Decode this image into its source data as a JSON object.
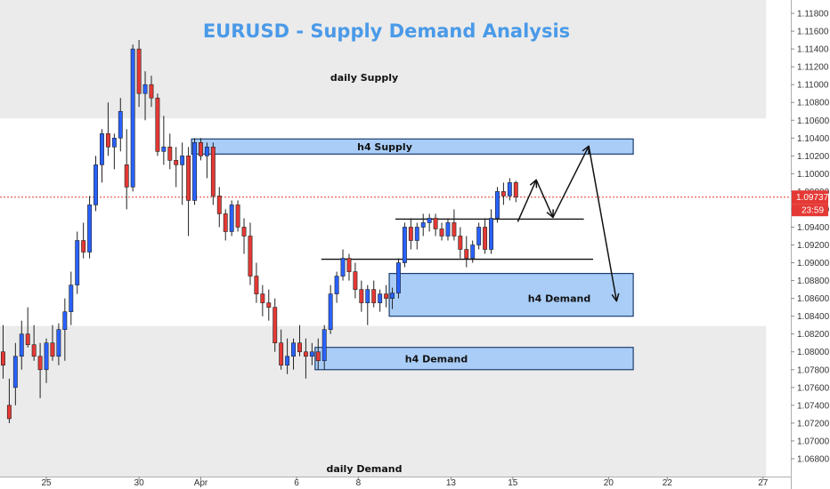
{
  "chart_data": {
    "type": "candlestick",
    "title": "EURUSD - Supply Demand Analysis",
    "symbol": "EURUSD",
    "colors": {
      "up": "#2962ff",
      "down": "#e53935",
      "zone_fill": "#a9cdf7",
      "zone_border": "#1e3e6f",
      "daily_band": "#ebebeb",
      "title": "#4a9ae8",
      "price_line": "#e53935",
      "badge": "#e53935"
    },
    "y_axis": {
      "position": "right",
      "range": [
        1.066,
        1.1195
      ],
      "ticks": [
        "1.11800",
        "1.11600",
        "1.11400",
        "1.11200",
        "1.11000",
        "1.10800",
        "1.10600",
        "1.10400",
        "1.10200",
        "1.10000",
        "1.09800",
        "1.09600",
        "1.09400",
        "1.09200",
        "1.09000",
        "1.08800",
        "1.08600",
        "1.08400",
        "1.08200",
        "1.08000",
        "1.07800",
        "1.07600",
        "1.07400",
        "1.07200",
        "1.07000",
        "1.06800"
      ]
    },
    "x_axis": {
      "range": [
        0,
        128
      ],
      "ticks": [
        {
          "label": "25",
          "x": 7.5
        },
        {
          "label": "30",
          "x": 22.5
        },
        {
          "label": "Apr",
          "x": 32.5
        },
        {
          "label": "6",
          "x": 48
        },
        {
          "label": "8",
          "x": 58
        },
        {
          "label": "13",
          "x": 73
        },
        {
          "label": "15",
          "x": 83
        },
        {
          "label": "20",
          "x": 98.5
        },
        {
          "label": "22",
          "x": 108
        },
        {
          "label": "27",
          "x": 123.5
        }
      ]
    },
    "current_price": {
      "label": "1.09737",
      "value": 1.09737,
      "timer": "23:59"
    },
    "zones": [
      {
        "name": "daily Supply",
        "type": "daily",
        "from": 1.1062,
        "to": 1.1195,
        "x0": 0,
        "x1": 124
      },
      {
        "name": "daily Demand",
        "type": "daily",
        "from": 1.066,
        "to": 1.0829,
        "x0": 0,
        "x1": 124
      },
      {
        "name": "h4 Supply",
        "type": "h4",
        "from": 1.1022,
        "to": 1.1039,
        "x0": 31,
        "x1": 102.5
      },
      {
        "name": "h4 Demand",
        "type": "h4",
        "from": 1.084,
        "to": 1.0888,
        "x0": 63,
        "x1": 102.5
      },
      {
        "name": "h4 Demand",
        "type": "h4",
        "from": 1.078,
        "to": 1.0805,
        "x0": 51,
        "x1": 102.5
      }
    ],
    "levels": [
      {
        "value": 1.0949,
        "x0": 64,
        "x1": 94.5
      },
      {
        "value": 1.0904,
        "x0": 52,
        "x1": 96
      }
    ],
    "projection": [
      [
        83.8,
        1.0946
      ],
      [
        86.8,
        1.0993
      ],
      [
        89.5,
        1.0951
      ],
      [
        95.3,
        1.1031
      ],
      [
        99.8,
        1.0857
      ]
    ],
    "series": [
      {
        "x": 0,
        "open": 1.08,
        "high": 1.083,
        "low": 1.077,
        "close": 1.0785
      },
      {
        "x": 1,
        "open": 1.074,
        "high": 1.077,
        "low": 1.072,
        "close": 1.0725
      },
      {
        "x": 2,
        "open": 1.076,
        "high": 1.081,
        "low": 1.074,
        "close": 1.0795
      },
      {
        "x": 3,
        "open": 1.0795,
        "high": 1.0835,
        "low": 1.078,
        "close": 1.082
      },
      {
        "x": 4,
        "open": 1.082,
        "high": 1.085,
        "low": 1.0805,
        "close": 1.0808
      },
      {
        "x": 5,
        "open": 1.0808,
        "high": 1.083,
        "low": 1.079,
        "close": 1.0795
      },
      {
        "x": 6,
        "open": 1.0795,
        "high": 1.081,
        "low": 1.0748,
        "close": 1.078
      },
      {
        "x": 7,
        "open": 1.078,
        "high": 1.0815,
        "low": 1.0765,
        "close": 1.081
      },
      {
        "x": 8,
        "open": 1.081,
        "high": 1.083,
        "low": 1.079,
        "close": 1.0795
      },
      {
        "x": 9,
        "open": 1.0795,
        "high": 1.0832,
        "low": 1.0785,
        "close": 1.0825
      },
      {
        "x": 10,
        "open": 1.0825,
        "high": 1.086,
        "low": 1.079,
        "close": 1.0845
      },
      {
        "x": 11,
        "open": 1.0845,
        "high": 1.089,
        "low": 1.083,
        "close": 1.0875
      },
      {
        "x": 12,
        "open": 1.0875,
        "high": 1.0935,
        "low": 1.0865,
        "close": 1.0925
      },
      {
        "x": 13,
        "open": 1.0925,
        "high": 1.0945,
        "low": 1.0905,
        "close": 1.0912
      },
      {
        "x": 14,
        "open": 1.0912,
        "high": 1.0975,
        "low": 1.0905,
        "close": 1.0965
      },
      {
        "x": 15,
        "open": 1.0965,
        "high": 1.102,
        "low": 1.0958,
        "close": 1.101
      },
      {
        "x": 16,
        "open": 1.101,
        "high": 1.105,
        "low": 1.099,
        "close": 1.1045
      },
      {
        "x": 17,
        "open": 1.1045,
        "high": 1.108,
        "low": 1.102,
        "close": 1.103
      },
      {
        "x": 18,
        "open": 1.103,
        "high": 1.1045,
        "low": 1.1005,
        "close": 1.104
      },
      {
        "x": 19,
        "open": 1.104,
        "high": 1.1085,
        "low": 1.1025,
        "close": 1.107
      },
      {
        "x": 20,
        "open": 1.101,
        "high": 1.105,
        "low": 1.096,
        "close": 1.0985
      },
      {
        "x": 21,
        "open": 1.0985,
        "high": 1.1145,
        "low": 1.098,
        "close": 1.114
      },
      {
        "x": 22,
        "open": 1.114,
        "high": 1.115,
        "low": 1.1075,
        "close": 1.109
      },
      {
        "x": 23,
        "open": 1.109,
        "high": 1.1115,
        "low": 1.106,
        "close": 1.11
      },
      {
        "x": 24,
        "open": 1.11,
        "high": 1.111,
        "low": 1.1075,
        "close": 1.1085
      },
      {
        "x": 25,
        "open": 1.1085,
        "high": 1.109,
        "low": 1.102,
        "close": 1.1025
      },
      {
        "x": 26,
        "open": 1.1025,
        "high": 1.1065,
        "low": 1.101,
        "close": 1.103
      },
      {
        "x": 27,
        "open": 1.103,
        "high": 1.1045,
        "low": 1.1005,
        "close": 1.1015
      },
      {
        "x": 28,
        "open": 1.1015,
        "high": 1.103,
        "low": 1.0985,
        "close": 1.101
      },
      {
        "x": 29,
        "open": 1.101,
        "high": 1.1035,
        "low": 1.0965,
        "close": 1.102
      },
      {
        "x": 30,
        "open": 1.102,
        "high": 1.103,
        "low": 1.093,
        "close": 1.097
      },
      {
        "x": 31,
        "open": 1.097,
        "high": 1.104,
        "low": 1.0965,
        "close": 1.1035
      },
      {
        "x": 32,
        "open": 1.1035,
        "high": 1.104,
        "low": 1.1015,
        "close": 1.102
      },
      {
        "x": 33,
        "open": 1.102,
        "high": 1.1035,
        "low": 1.0995,
        "close": 1.103
      },
      {
        "x": 34,
        "open": 1.103,
        "high": 1.1035,
        "low": 1.0965,
        "close": 1.0975
      },
      {
        "x": 35,
        "open": 1.0975,
        "high": 1.0985,
        "low": 1.094,
        "close": 1.0955
      },
      {
        "x": 36,
        "open": 1.0955,
        "high": 1.096,
        "low": 1.0925,
        "close": 1.0935
      },
      {
        "x": 37,
        "open": 1.0935,
        "high": 1.097,
        "low": 1.093,
        "close": 1.0965
      },
      {
        "x": 38,
        "open": 1.0965,
        "high": 1.097,
        "low": 1.0935,
        "close": 1.094
      },
      {
        "x": 39,
        "open": 1.094,
        "high": 1.095,
        "low": 1.091,
        "close": 1.093
      },
      {
        "x": 40,
        "open": 1.093,
        "high": 1.0945,
        "low": 1.0875,
        "close": 1.0885
      },
      {
        "x": 41,
        "open": 1.0885,
        "high": 1.09,
        "low": 1.0855,
        "close": 1.0865
      },
      {
        "x": 42,
        "open": 1.0865,
        "high": 1.0875,
        "low": 1.084,
        "close": 1.0855
      },
      {
        "x": 43,
        "open": 1.0855,
        "high": 1.087,
        "low": 1.0835,
        "close": 1.085
      },
      {
        "x": 44,
        "open": 1.085,
        "high": 1.086,
        "low": 1.08,
        "close": 1.081
      },
      {
        "x": 45,
        "open": 1.081,
        "high": 1.0825,
        "low": 1.078,
        "close": 1.0785
      },
      {
        "x": 46,
        "open": 1.0785,
        "high": 1.0815,
        "low": 1.0775,
        "close": 1.0795
      },
      {
        "x": 47,
        "open": 1.0795,
        "high": 1.0815,
        "low": 1.078,
        "close": 1.081
      },
      {
        "x": 48,
        "open": 1.081,
        "high": 1.083,
        "low": 1.0795,
        "close": 1.08
      },
      {
        "x": 49,
        "open": 1.08,
        "high": 1.0815,
        "low": 1.077,
        "close": 1.0795
      },
      {
        "x": 50,
        "open": 1.0795,
        "high": 1.081,
        "low": 1.0785,
        "close": 1.08
      },
      {
        "x": 51,
        "open": 1.08,
        "high": 1.0815,
        "low": 1.078,
        "close": 1.079
      },
      {
        "x": 52,
        "open": 1.079,
        "high": 1.083,
        "low": 1.078,
        "close": 1.0825
      },
      {
        "x": 53,
        "open": 1.0825,
        "high": 1.0875,
        "low": 1.082,
        "close": 1.0865
      },
      {
        "x": 54,
        "open": 1.0865,
        "high": 1.089,
        "low": 1.0855,
        "close": 1.0885
      },
      {
        "x": 55,
        "open": 1.0885,
        "high": 1.0915,
        "low": 1.088,
        "close": 1.0905
      },
      {
        "x": 56,
        "open": 1.0905,
        "high": 1.091,
        "low": 1.088,
        "close": 1.089
      },
      {
        "x": 57,
        "open": 1.089,
        "high": 1.09,
        "low": 1.086,
        "close": 1.087
      },
      {
        "x": 58,
        "open": 1.087,
        "high": 1.088,
        "low": 1.0845,
        "close": 1.0855
      },
      {
        "x": 59,
        "open": 1.0855,
        "high": 1.0875,
        "low": 1.083,
        "close": 1.087
      },
      {
        "x": 60,
        "open": 1.087,
        "high": 1.088,
        "low": 1.085,
        "close": 1.0855
      },
      {
        "x": 61,
        "open": 1.0855,
        "high": 1.087,
        "low": 1.0845,
        "close": 1.0865
      },
      {
        "x": 62,
        "open": 1.0865,
        "high": 1.0875,
        "low": 1.085,
        "close": 1.086
      },
      {
        "x": 63,
        "open": 1.086,
        "high": 1.0872,
        "low": 1.0848,
        "close": 1.0866
      },
      {
        "x": 64,
        "open": 1.0866,
        "high": 1.0905,
        "low": 1.086,
        "close": 1.09
      },
      {
        "x": 65,
        "open": 1.09,
        "high": 1.0945,
        "low": 1.0895,
        "close": 1.094
      },
      {
        "x": 66,
        "open": 1.094,
        "high": 1.095,
        "low": 1.0915,
        "close": 1.0925
      },
      {
        "x": 67,
        "open": 1.0925,
        "high": 1.0945,
        "low": 1.0915,
        "close": 1.094
      },
      {
        "x": 68,
        "open": 1.094,
        "high": 1.0955,
        "low": 1.093,
        "close": 1.0945
      },
      {
        "x": 69,
        "open": 1.0945,
        "high": 1.0955,
        "low": 1.0935,
        "close": 1.095
      },
      {
        "x": 70,
        "open": 1.095,
        "high": 1.0955,
        "low": 1.093,
        "close": 1.0938
      },
      {
        "x": 71,
        "open": 1.0938,
        "high": 1.0945,
        "low": 1.0925,
        "close": 1.093
      },
      {
        "x": 72,
        "open": 1.093,
        "high": 1.095,
        "low": 1.0925,
        "close": 1.0945
      },
      {
        "x": 73,
        "open": 1.0945,
        "high": 1.096,
        "low": 1.0925,
        "close": 1.093
      },
      {
        "x": 74,
        "open": 1.093,
        "high": 1.094,
        "low": 1.0905,
        "close": 1.0915
      },
      {
        "x": 75,
        "open": 1.0915,
        "high": 1.093,
        "low": 1.0895,
        "close": 1.0905
      },
      {
        "x": 76,
        "open": 1.0905,
        "high": 1.0925,
        "low": 1.09,
        "close": 1.092
      },
      {
        "x": 77,
        "open": 1.092,
        "high": 1.0945,
        "low": 1.0915,
        "close": 1.094
      },
      {
        "x": 78,
        "open": 1.094,
        "high": 1.095,
        "low": 1.091,
        "close": 1.0915
      },
      {
        "x": 79,
        "open": 1.0915,
        "high": 1.096,
        "low": 1.091,
        "close": 1.095
      },
      {
        "x": 80,
        "open": 1.095,
        "high": 1.0985,
        "low": 1.0945,
        "close": 1.098
      },
      {
        "x": 81,
        "open": 1.098,
        "high": 1.099,
        "low": 1.0965,
        "close": 1.0975
      },
      {
        "x": 82,
        "open": 1.0975,
        "high": 1.0995,
        "low": 1.097,
        "close": 1.099
      },
      {
        "x": 83,
        "open": 1.099,
        "high": 1.0992,
        "low": 1.0968,
        "close": 1.0974
      }
    ]
  }
}
